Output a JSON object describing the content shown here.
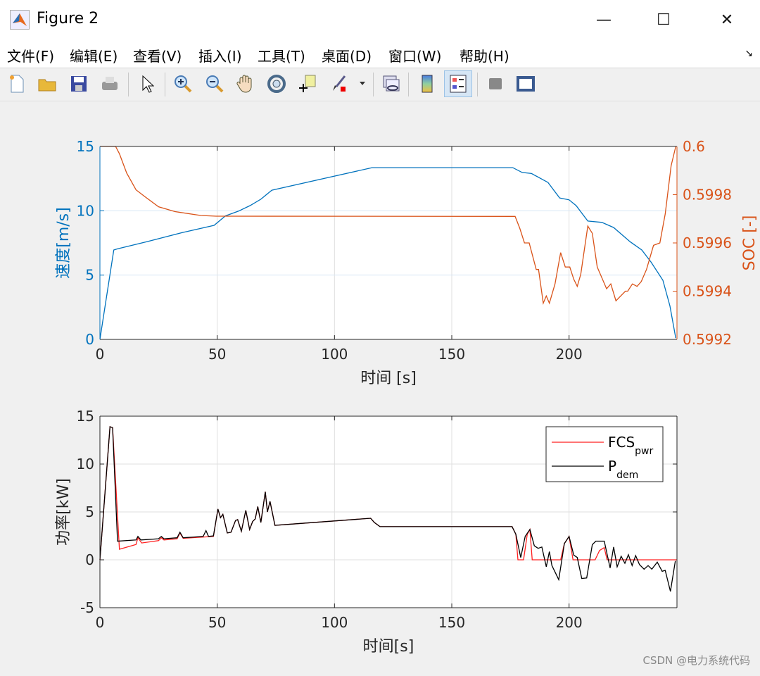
{
  "window": {
    "title": "Figure 2",
    "minimize": "—",
    "maximize": "☐",
    "close": "✕"
  },
  "menu": [
    "文件(F)",
    "编辑(E)",
    "查看(V)",
    "插入(I)",
    "工具(T)",
    "桌面(D)",
    "窗口(W)",
    "帮助(H)"
  ],
  "menu_overflow": "↘",
  "toolbar": [
    "new-file",
    "open-folder",
    "save",
    "print",
    "edit-pointer",
    "zoom-in",
    "zoom-out",
    "pan-hand",
    "rotate-3d",
    "data-cursor",
    "brush",
    "link",
    "colorbar",
    "legend",
    "hide-tools",
    "dock"
  ],
  "colors": {
    "speed": "#0072BD",
    "soc": "#D95319",
    "fcs": "#FF2020",
    "pdem": "#000000"
  },
  "watermark": "CSDN @电力系统代码",
  "chart_data": [
    {
      "type": "line",
      "xlabel": "时间 [s]",
      "ylabel": "速度[m/s]",
      "ylabel_right": "SOC [-]",
      "xlim": [
        0,
        246
      ],
      "ylim": [
        0,
        15
      ],
      "ylim_right": [
        0.5992,
        0.6
      ],
      "xticks": [
        "0",
        "50",
        "100",
        "150",
        "200"
      ],
      "yticks": [
        "0",
        "5",
        "10",
        "15"
      ],
      "yticks_right": [
        "0.5992",
        "0.5994",
        "0.5996",
        "0.5998",
        "0.6"
      ],
      "grid": true,
      "series": [
        {
          "name": "速度",
          "axis": "left",
          "x": [
            0,
            5.9,
            7.5,
            20,
            35,
            48.7,
            53.5,
            59,
            64,
            68.6,
            73.3,
            116,
            176,
            180,
            184,
            191,
            196,
            200,
            203,
            208,
            214,
            219,
            226,
            231,
            235,
            240,
            243,
            245.5
          ],
          "y": [
            0,
            6.95,
            7.04,
            7.6,
            8.3,
            8.87,
            9.6,
            9.97,
            10.4,
            10.9,
            11.6,
            13.35,
            13.35,
            12.98,
            12.9,
            12.2,
            11.0,
            10.85,
            10.4,
            9.2,
            9.1,
            8.7,
            7.6,
            6.95,
            6.0,
            4.6,
            2.6,
            0.1
          ]
        },
        {
          "name": "SOC",
          "axis": "right",
          "x": [
            0,
            6.7,
            8.3,
            11.4,
            15.4,
            19.4,
            25,
            32,
            43,
            49.5,
            177,
            179,
            181,
            183,
            186,
            187,
            189,
            190.3,
            191.6,
            194,
            196.4,
            198.4,
            200.3,
            202,
            203.5,
            205,
            208,
            209.9,
            212,
            216,
            217.8,
            220,
            222,
            224,
            225,
            227,
            229,
            230.8,
            233,
            236,
            238.7,
            241,
            243.5,
            245.5
          ],
          "y": [
            0.6,
            0.6,
            0.59997,
            0.59989,
            0.59982,
            0.59979,
            0.59975,
            0.59973,
            0.599714,
            0.599711,
            0.59971,
            0.59966,
            0.5996,
            0.5996,
            0.59949,
            0.59949,
            0.59935,
            0.59938,
            0.59935,
            0.59943,
            0.59956,
            0.5995,
            0.5995,
            0.59945,
            0.59942,
            0.59947,
            0.59967,
            0.59964,
            0.5995,
            0.59941,
            0.59943,
            0.59936,
            0.59938,
            0.5994,
            0.5994,
            0.59943,
            0.59942,
            0.59944,
            0.59949,
            0.59959,
            0.5996,
            0.59972,
            0.59992,
            0.6
          ]
        }
      ]
    },
    {
      "type": "line",
      "xlabel": "时间[s]",
      "ylabel": "功率[kW]",
      "xlim": [
        0,
        246
      ],
      "ylim": [
        -5,
        15
      ],
      "xticks": [
        "0",
        "50",
        "100",
        "150",
        "200"
      ],
      "yticks": [
        "-5",
        "0",
        "5",
        "10",
        "15"
      ],
      "grid": true,
      "legend": "top-right",
      "series": [
        {
          "name": "FCS",
          "subscript": "pwr",
          "color": "fcs",
          "x": [
            0,
            4.3,
            5.4,
            8.3,
            15.4,
            16.2,
            17.8,
            25,
            26.2,
            27.3,
            32.9,
            34.1,
            35.5,
            48.4,
            50.3,
            51.4,
            52.4,
            54.3,
            55.9,
            57.8,
            58.7,
            60.3,
            62.2,
            63.8,
            65.1,
            66.2,
            67.3,
            68.6,
            70.5,
            71.4,
            72.5,
            74.6,
            115.4,
            117,
            119.4,
            175.7,
            177.3,
            178.2,
            180.6,
            182.2,
            183.3,
            184.3,
            196.4,
            198,
            200,
            201.7,
            211.1,
            213,
            215,
            216.2,
            246
          ],
          "y": [
            0,
            13.9,
            13.8,
            1.1,
            1.6,
            2.3,
            1.76,
            2.0,
            2.3,
            2.07,
            2.2,
            2.8,
            2.24,
            2.44,
            5.3,
            4.4,
            4.75,
            2.8,
            2.88,
            4.1,
            4.2,
            2.98,
            5.17,
            3.17,
            4.0,
            4.27,
            5.56,
            3.9,
            7.1,
            5.0,
            6.1,
            3.6,
            4.34,
            3.9,
            3.46,
            3.46,
            2.68,
            0,
            0,
            2.68,
            3.17,
            0,
            0,
            1.7,
            2.44,
            0,
            0,
            0.98,
            1.27,
            0,
            0
          ]
        },
        {
          "name": "P",
          "subscript": "dem",
          "color": "pdem",
          "x": [
            0,
            4.3,
            5.4,
            7.5,
            15.4,
            16.2,
            17.5,
            25,
            26.2,
            27.3,
            32.9,
            34.1,
            35.5,
            44,
            45.2,
            46.3,
            48.4,
            50.3,
            51.4,
            52.4,
            54.3,
            55.9,
            57.8,
            58.7,
            60.3,
            62.2,
            63.8,
            65.1,
            66.2,
            67.3,
            68.6,
            70.5,
            71.4,
            72.5,
            74.6,
            115.4,
            117,
            119.4,
            175.7,
            177.3,
            179.4,
            181.3,
            183.3,
            185.2,
            186.8,
            188.4,
            190.3,
            191.6,
            192.7,
            195.6,
            198,
            200,
            202,
            203.5,
            205.4,
            207.5,
            209.9,
            211.4,
            215,
            217.5,
            219,
            220.5,
            222.2,
            223.8,
            225.3,
            226.9,
            228.4,
            230,
            232,
            233.7,
            235.3,
            237.6,
            239.7,
            241,
            243.2,
            245.3
          ],
          "y": [
            0,
            13.9,
            13.8,
            1.95,
            2.07,
            2.44,
            2.07,
            2.2,
            2.44,
            2.2,
            2.3,
            2.88,
            2.3,
            2.44,
            3.05,
            2.44,
            2.5,
            5.3,
            4.4,
            4.75,
            2.8,
            2.88,
            4.1,
            4.2,
            2.98,
            5.17,
            3.17,
            4.0,
            4.27,
            5.56,
            3.9,
            7.1,
            5.0,
            6.1,
            3.6,
            4.34,
            3.9,
            3.46,
            3.46,
            2.68,
            0.24,
            2.44,
            3.17,
            1.46,
            1.2,
            1.34,
            -0.73,
            0.85,
            -0.6,
            -2.07,
            1.7,
            2.44,
            0.49,
            0.24,
            -1.95,
            -1.9,
            1.59,
            1.95,
            1.95,
            -0.85,
            1.34,
            -0.73,
            0.37,
            -0.37,
            0.54,
            -0.6,
            0.44,
            -0.49,
            -0.98,
            -0.6,
            -0.98,
            -0.24,
            -1.2,
            -1.1,
            -3.3,
            -0.12
          ]
        }
      ]
    }
  ]
}
